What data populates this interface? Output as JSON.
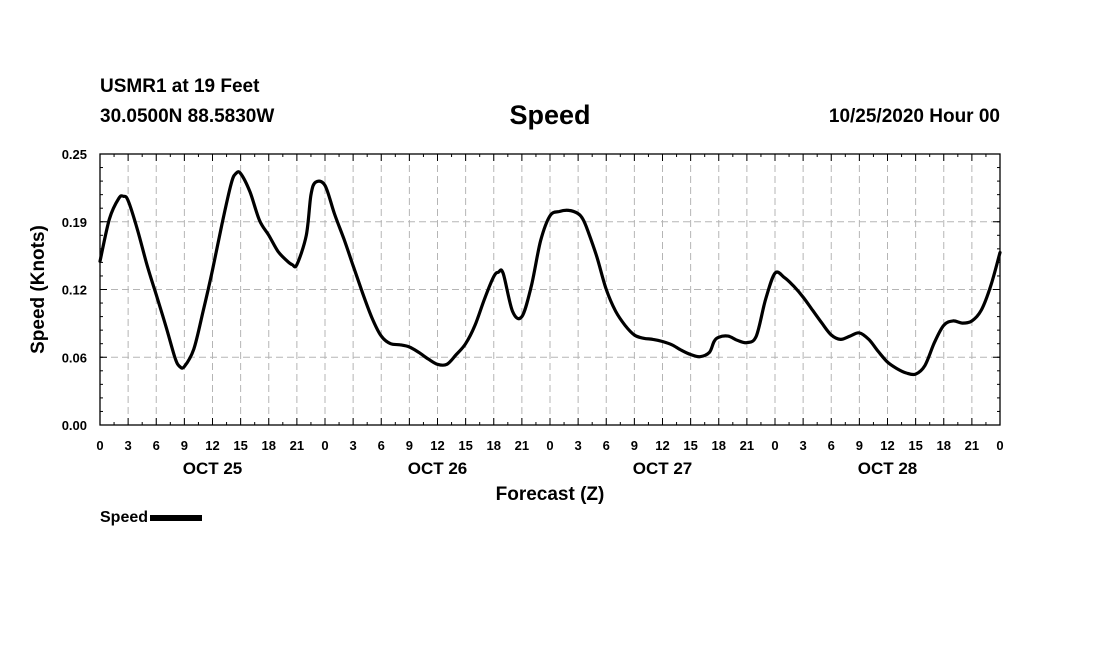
{
  "header": {
    "station": "USMR1 at 19 Feet",
    "coords": "30.0500N 88.5830W",
    "run": "10/25/2020 Hour 00"
  },
  "chart_data": {
    "type": "line",
    "title": "Speed",
    "xlabel": "Forecast (Z)",
    "ylabel": "Speed (Knots)",
    "ylim": [
      0,
      0.25
    ],
    "xlim": [
      0,
      96
    ],
    "yticks": [
      "0.00",
      "0.06",
      "0.12",
      "0.19",
      "0.25"
    ],
    "ytick_values": [
      0,
      0.0625,
      0.125,
      0.1875,
      0.25
    ],
    "xtick_labels": [
      "0",
      "3",
      "6",
      "9",
      "12",
      "15",
      "18",
      "21",
      "0",
      "3",
      "6",
      "9",
      "12",
      "15",
      "18",
      "21",
      "0",
      "3",
      "6",
      "9",
      "12",
      "15",
      "18",
      "21",
      "0",
      "3",
      "6",
      "9",
      "12",
      "15",
      "18",
      "21",
      "0"
    ],
    "day_labels": [
      {
        "label": "OCT 25",
        "hour": 12
      },
      {
        "label": "OCT 26",
        "hour": 36
      },
      {
        "label": "OCT 27",
        "hour": 60
      },
      {
        "label": "OCT 28",
        "hour": 84
      }
    ],
    "grid": true,
    "legend_position": "bottom-left",
    "series": [
      {
        "name": "Speed",
        "color": "#000000",
        "x": [
          0,
          1,
          2,
          2.5,
          3,
          4,
          5,
          6,
          7,
          8,
          8.5,
          9,
          10,
          11,
          12,
          13,
          14,
          14.5,
          15,
          16,
          17,
          18,
          19,
          20,
          20.5,
          21,
          22,
          22.5,
          23,
          24,
          25,
          26,
          27,
          28,
          29,
          30,
          31,
          32,
          33,
          34,
          35,
          36,
          37,
          38,
          39,
          40,
          41,
          42,
          42.5,
          43,
          44,
          45,
          46,
          47,
          48,
          49,
          50,
          51,
          51.5,
          52,
          53,
          54,
          55,
          56,
          57,
          58,
          59,
          60,
          61,
          62,
          63,
          64,
          65,
          65.5,
          66,
          67,
          68,
          69,
          70,
          71,
          72,
          73,
          74,
          75,
          76,
          77,
          78,
          79,
          80,
          81,
          82,
          83,
          84,
          85,
          86,
          87,
          88,
          89,
          90,
          91,
          92,
          93,
          94,
          95,
          96
        ],
        "y": [
          0.151,
          0.19,
          0.209,
          0.211,
          0.207,
          0.18,
          0.148,
          0.12,
          0.092,
          0.062,
          0.054,
          0.054,
          0.07,
          0.105,
          0.143,
          0.185,
          0.223,
          0.232,
          0.232,
          0.215,
          0.189,
          0.175,
          0.16,
          0.151,
          0.148,
          0.148,
          0.175,
          0.212,
          0.224,
          0.221,
          0.195,
          0.172,
          0.147,
          0.122,
          0.099,
          0.082,
          0.075,
          0.074,
          0.072,
          0.067,
          0.061,
          0.056,
          0.056,
          0.065,
          0.075,
          0.092,
          0.116,
          0.137,
          0.141,
          0.14,
          0.105,
          0.1,
          0.128,
          0.17,
          0.193,
          0.197,
          0.198,
          0.195,
          0.19,
          0.18,
          0.155,
          0.125,
          0.105,
          0.092,
          0.083,
          0.08,
          0.079,
          0.077,
          0.074,
          0.069,
          0.065,
          0.063,
          0.067,
          0.077,
          0.081,
          0.082,
          0.078,
          0.076,
          0.082,
          0.116,
          0.14,
          0.136,
          0.128,
          0.118,
          0.106,
          0.094,
          0.083,
          0.079,
          0.082,
          0.085,
          0.079,
          0.068,
          0.058,
          0.052,
          0.048,
          0.047,
          0.055,
          0.076,
          0.092,
          0.096,
          0.094,
          0.096,
          0.106,
          0.128,
          0.159
        ]
      }
    ]
  }
}
